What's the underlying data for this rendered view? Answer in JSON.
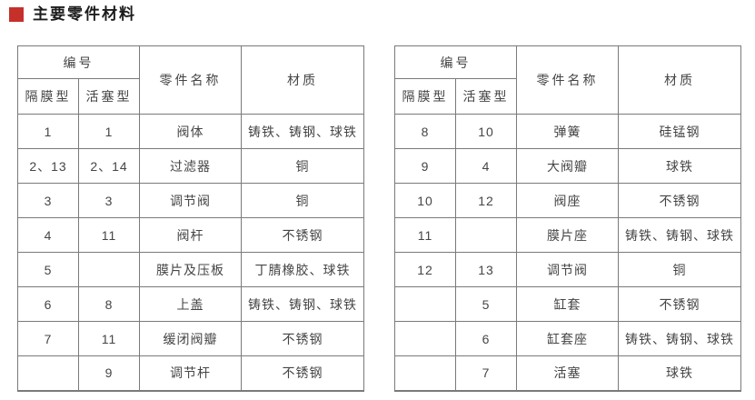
{
  "title": {
    "text": "主要零件材料"
  },
  "icons": {
    "section_bullet": "red-filled-square"
  },
  "colors": {
    "accent_red": "#c5302b",
    "table_border": "#7a7a7a",
    "text": "#454545",
    "title_text": "#1c1c1c",
    "background": "#ffffff"
  },
  "tables": [
    {
      "headers": {
        "number": "编号",
        "diaphragm": "隔膜型",
        "piston": "活塞型",
        "part_name": "零件名称",
        "material": "材质"
      },
      "rows": [
        [
          "1",
          "1",
          "阀体",
          "铸铁、铸钢、球铁"
        ],
        [
          "2、13",
          "2、14",
          "过滤器",
          "铜"
        ],
        [
          "3",
          "3",
          "调节阀",
          "铜"
        ],
        [
          "4",
          "11",
          "阀杆",
          "不锈钢"
        ],
        [
          "5",
          "",
          "膜片及压板",
          "丁腈橡胶、球铁"
        ],
        [
          "6",
          "8",
          "上盖",
          "铸铁、铸钢、球铁"
        ],
        [
          "7",
          "11",
          "缓闭阀瓣",
          "不锈钢"
        ],
        [
          "",
          "9",
          "调节杆",
          "不锈钢"
        ]
      ]
    },
    {
      "headers": {
        "number": "编号",
        "diaphragm": "隔膜型",
        "piston": "活塞型",
        "part_name": "零件名称",
        "material": "材质"
      },
      "rows": [
        [
          "8",
          "10",
          "弹簧",
          "硅锰钢"
        ],
        [
          "9",
          "4",
          "大阀瓣",
          "球铁"
        ],
        [
          "10",
          "12",
          "阀座",
          "不锈钢"
        ],
        [
          "11",
          "",
          "膜片座",
          "铸铁、铸钢、球铁"
        ],
        [
          "12",
          "13",
          "调节阀",
          "铜"
        ],
        [
          "",
          "5",
          "缸套",
          "不锈钢"
        ],
        [
          "",
          "6",
          "缸套座",
          "铸铁、铸钢、球铁"
        ],
        [
          "",
          "7",
          "活塞",
          "球铁"
        ]
      ]
    }
  ]
}
